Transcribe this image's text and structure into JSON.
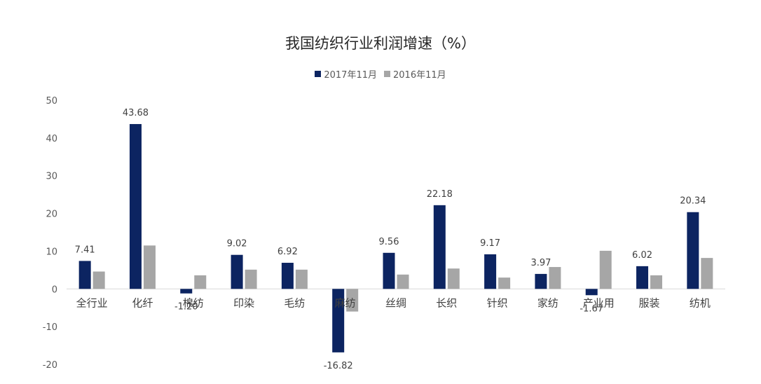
{
  "chart_data": {
    "type": "bar",
    "title": "我国纺织行业利润增速（%）",
    "categories": [
      "全行业",
      "化纤",
      "棉纺",
      "印染",
      "毛纺",
      "麻纺",
      "丝绸",
      "长织",
      "针织",
      "家纺",
      "产业用",
      "服装",
      "纺机"
    ],
    "series": [
      {
        "name": "2017年11月",
        "color": "#0c2461",
        "values": [
          7.41,
          43.68,
          -1.2,
          9.02,
          6.92,
          -16.82,
          9.56,
          22.18,
          9.17,
          3.97,
          -1.67,
          6.02,
          20.34
        ],
        "labels": [
          "7.41",
          "43.68",
          "-1.20",
          "9.02",
          "6.92",
          "-16.82",
          "9.56",
          "22.18",
          "9.17",
          "3.97",
          "-1.67",
          "6.02",
          "20.34"
        ]
      },
      {
        "name": "2016年11月",
        "color": "#a6a6a6",
        "values": [
          4.6,
          11.5,
          3.6,
          5.1,
          5.1,
          -6.0,
          3.8,
          5.4,
          3.0,
          5.8,
          10.1,
          3.6,
          8.2
        ]
      }
    ],
    "ylim": [
      -20,
      50
    ],
    "yticks": [
      "-20",
      "-10",
      "0",
      "10",
      "20",
      "30",
      "40",
      "50"
    ],
    "grid": false,
    "legend": "top-center"
  }
}
